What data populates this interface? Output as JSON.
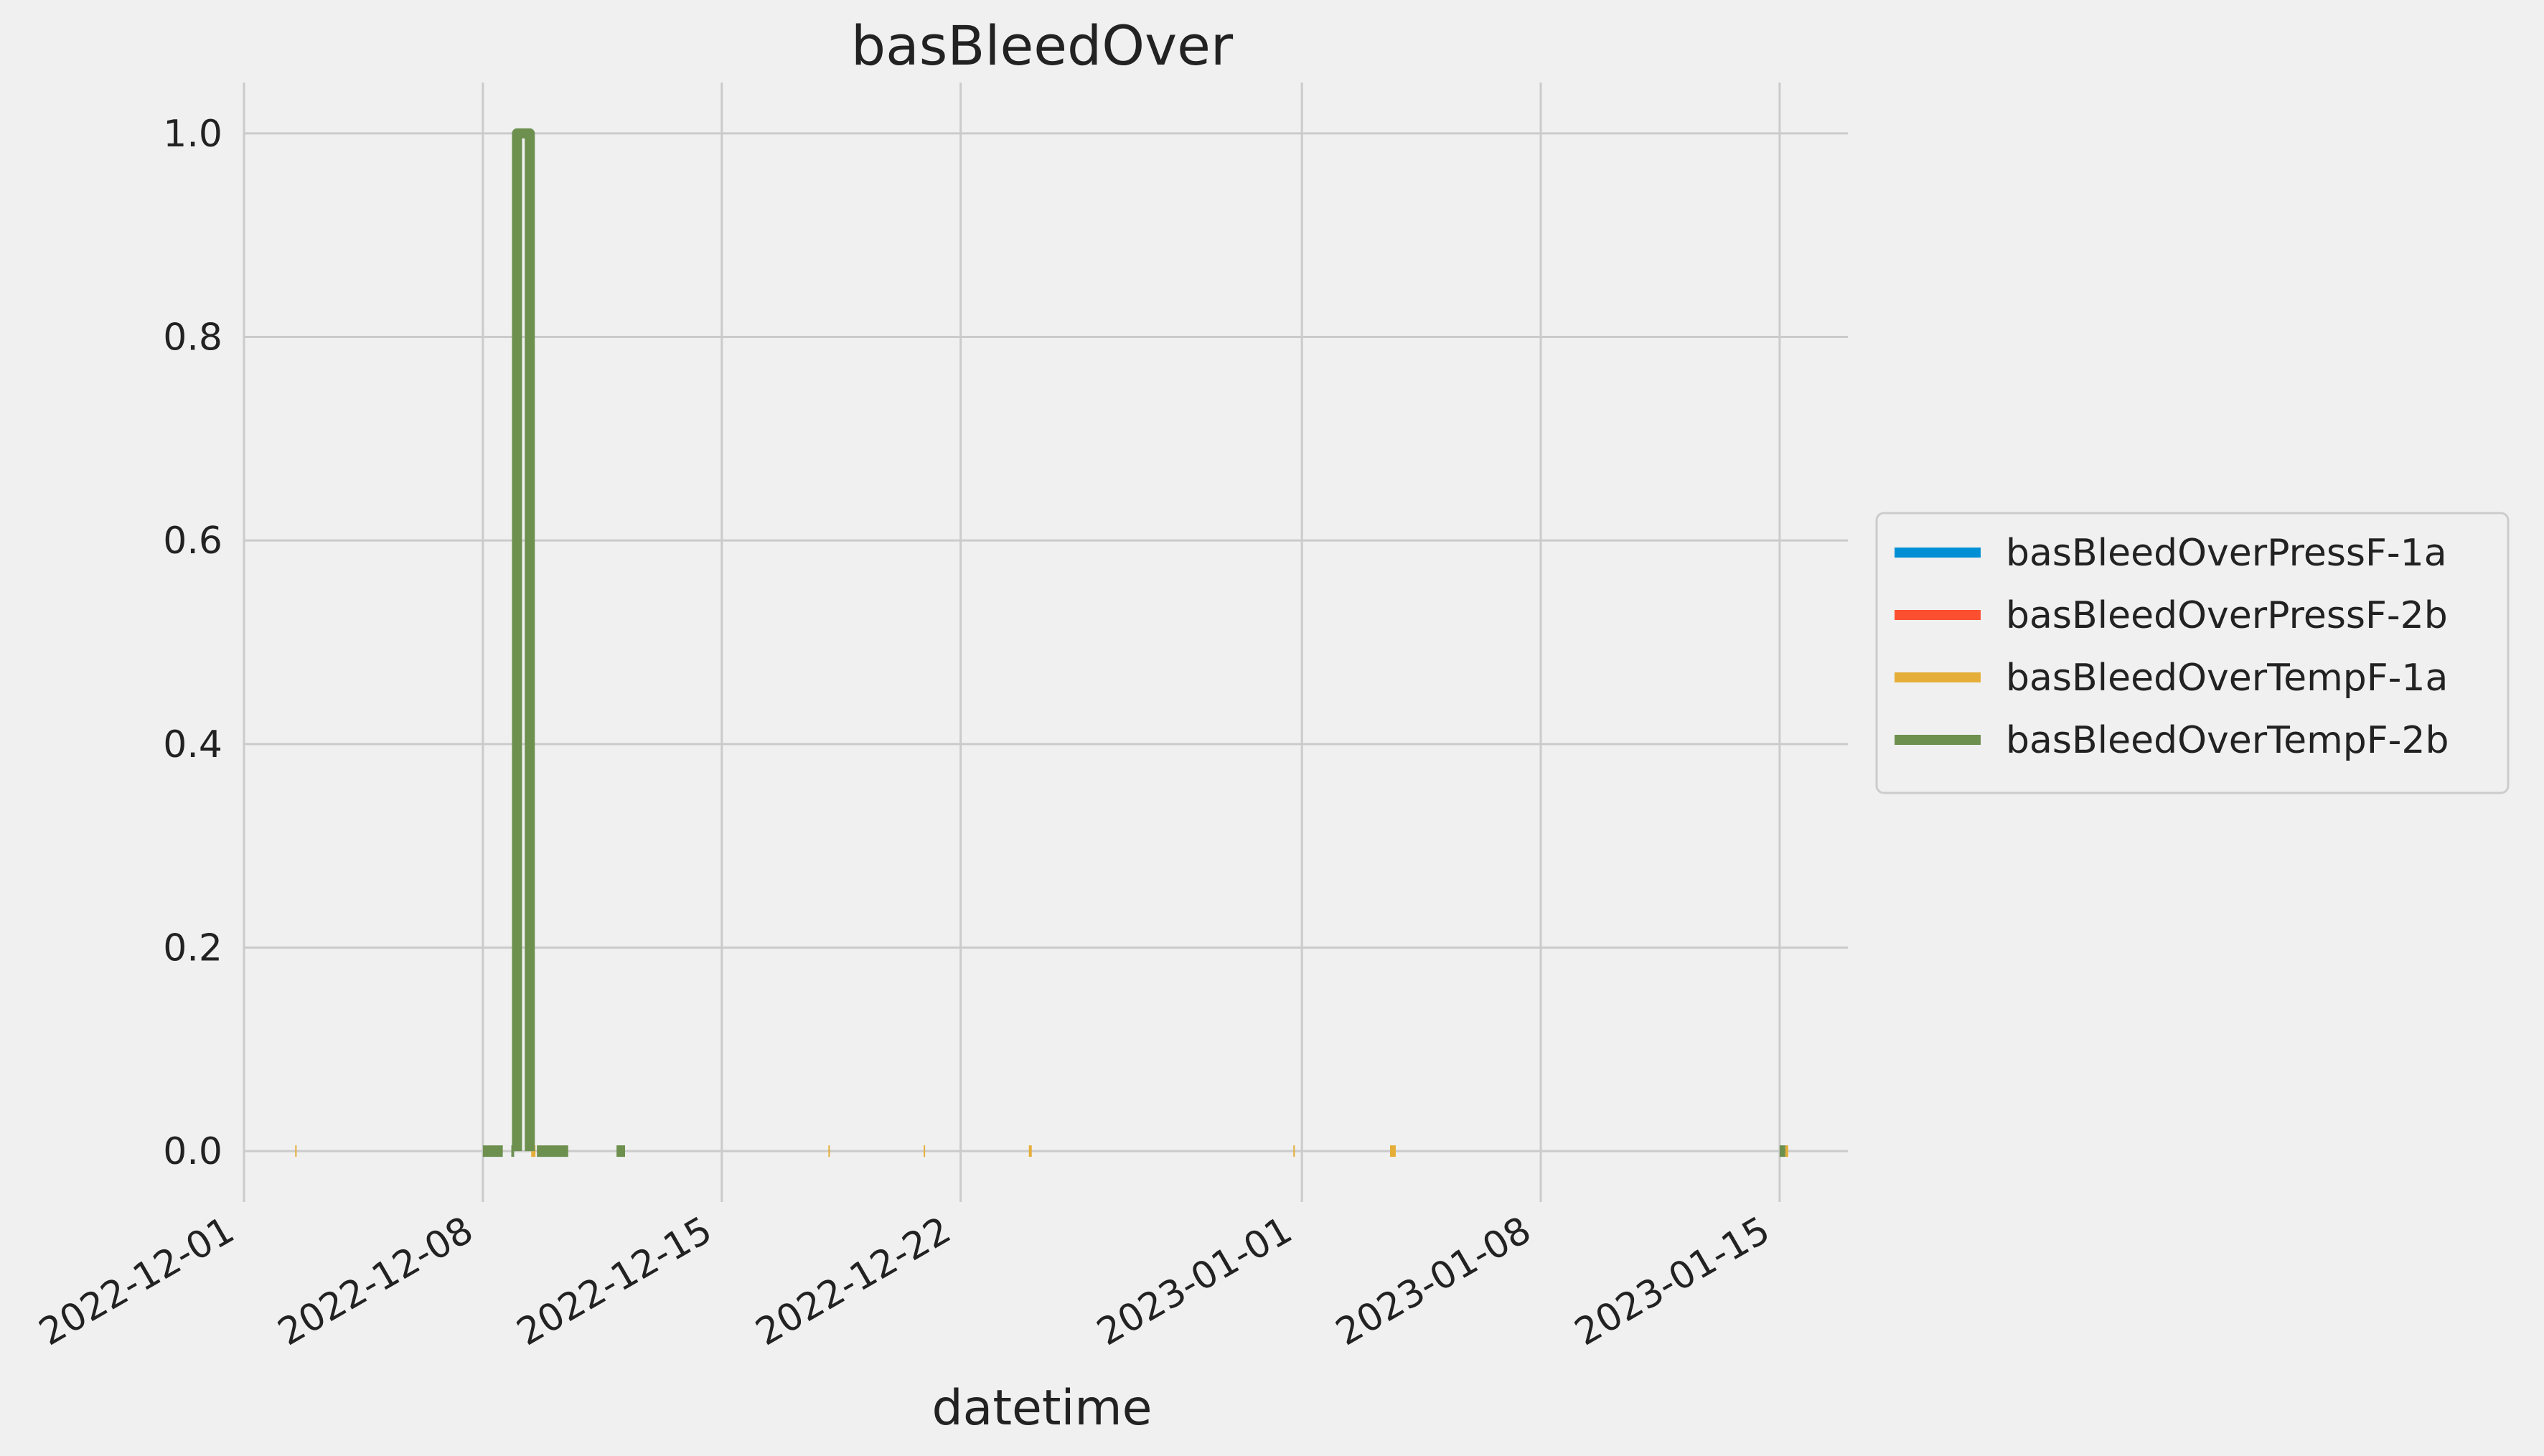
{
  "chart_data": {
    "type": "line",
    "title": "basBleedOver",
    "xlabel": "datetime",
    "ylabel": "",
    "x_range": [
      "2022-12-01",
      "2023-01-17"
    ],
    "ylim": [
      -0.05,
      1.05
    ],
    "x_ticks": [
      "2022-12-01",
      "2022-12-08",
      "2022-12-15",
      "2022-12-22",
      "2023-01-01",
      "2023-01-08",
      "2023-01-15"
    ],
    "y_ticks": [
      "0.0",
      "0.2",
      "0.4",
      "0.6",
      "0.8",
      "1.0"
    ],
    "grid": true,
    "legend_position": "right",
    "series": [
      {
        "name": "basBleedOverPressF-1a",
        "color": "#008fd5",
        "segments": []
      },
      {
        "name": "basBleedOverPressF-2b",
        "color": "#fc4f30",
        "segments": []
      },
      {
        "name": "basBleedOverTempF-1a",
        "color": "#e5ae38",
        "segments": [
          {
            "start": "2022-12-02T12:00",
            "end": "2022-12-02T13:00",
            "value": 0
          },
          {
            "start": "2022-12-09T10:00",
            "end": "2022-12-09T13:00",
            "value": 0
          },
          {
            "start": "2022-12-18T03:00",
            "end": "2022-12-18T04:00",
            "value": 0
          },
          {
            "start": "2022-12-20T22:00",
            "end": "2022-12-20T23:00",
            "value": 0
          },
          {
            "start": "2022-12-24T00:00",
            "end": "2022-12-24T02:00",
            "value": 0
          },
          {
            "start": "2022-12-31T18:00",
            "end": "2022-12-31T19:00",
            "value": 0
          },
          {
            "start": "2023-01-03T14:00",
            "end": "2023-01-03T18:00",
            "value": 0
          },
          {
            "start": "2023-01-15T04:00",
            "end": "2023-01-15T06:00",
            "value": 0
          }
        ]
      },
      {
        "name": "basBleedOverTempF-2b",
        "color": "#6d904f",
        "segments": [
          {
            "start": "2022-12-08T00:00",
            "end": "2022-12-08T14:00",
            "value": 0
          },
          {
            "start": "2022-12-08T20:00",
            "end": "2022-12-08T22:00",
            "value": 0
          },
          {
            "start": "2022-12-09T00:00",
            "end": "2022-12-09T09:00",
            "value": 1
          },
          {
            "start": "2022-12-09T14:00",
            "end": "2022-12-10T12:00",
            "value": 0
          },
          {
            "start": "2022-12-11T22:00",
            "end": "2022-12-12T04:00",
            "value": 0
          },
          {
            "start": "2023-01-15T00:00",
            "end": "2023-01-15T04:00",
            "value": 0
          }
        ]
      }
    ]
  }
}
